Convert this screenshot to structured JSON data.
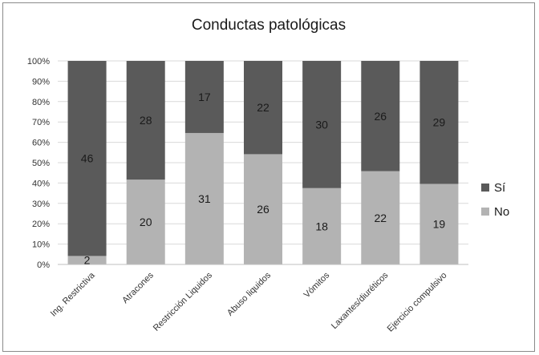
{
  "chart_data": {
    "type": "bar",
    "stacked": true,
    "normalized": true,
    "title": "Conductas patológicas",
    "xlabel": "",
    "ylabel": "",
    "ylim": [
      0,
      100
    ],
    "yticks": [
      "0%",
      "10%",
      "20%",
      "30%",
      "40%",
      "50%",
      "60%",
      "70%",
      "80%",
      "90%",
      "100%"
    ],
    "grid": true,
    "legend": "right",
    "categories": [
      "Ing. Restrictiva",
      "Atracones",
      "Restricción Liquidos",
      "Abuso liquidos",
      "Vómitos",
      "Laxantes/diuréticos",
      "Ejercicio compulsivo"
    ],
    "series": [
      {
        "name": "No",
        "values": [
          2,
          20,
          31,
          26,
          18,
          22,
          19
        ],
        "color": "#b3b3b3"
      },
      {
        "name": "Sí",
        "values": [
          46,
          28,
          17,
          22,
          30,
          26,
          29
        ],
        "color": "#5a5a5a"
      }
    ]
  }
}
